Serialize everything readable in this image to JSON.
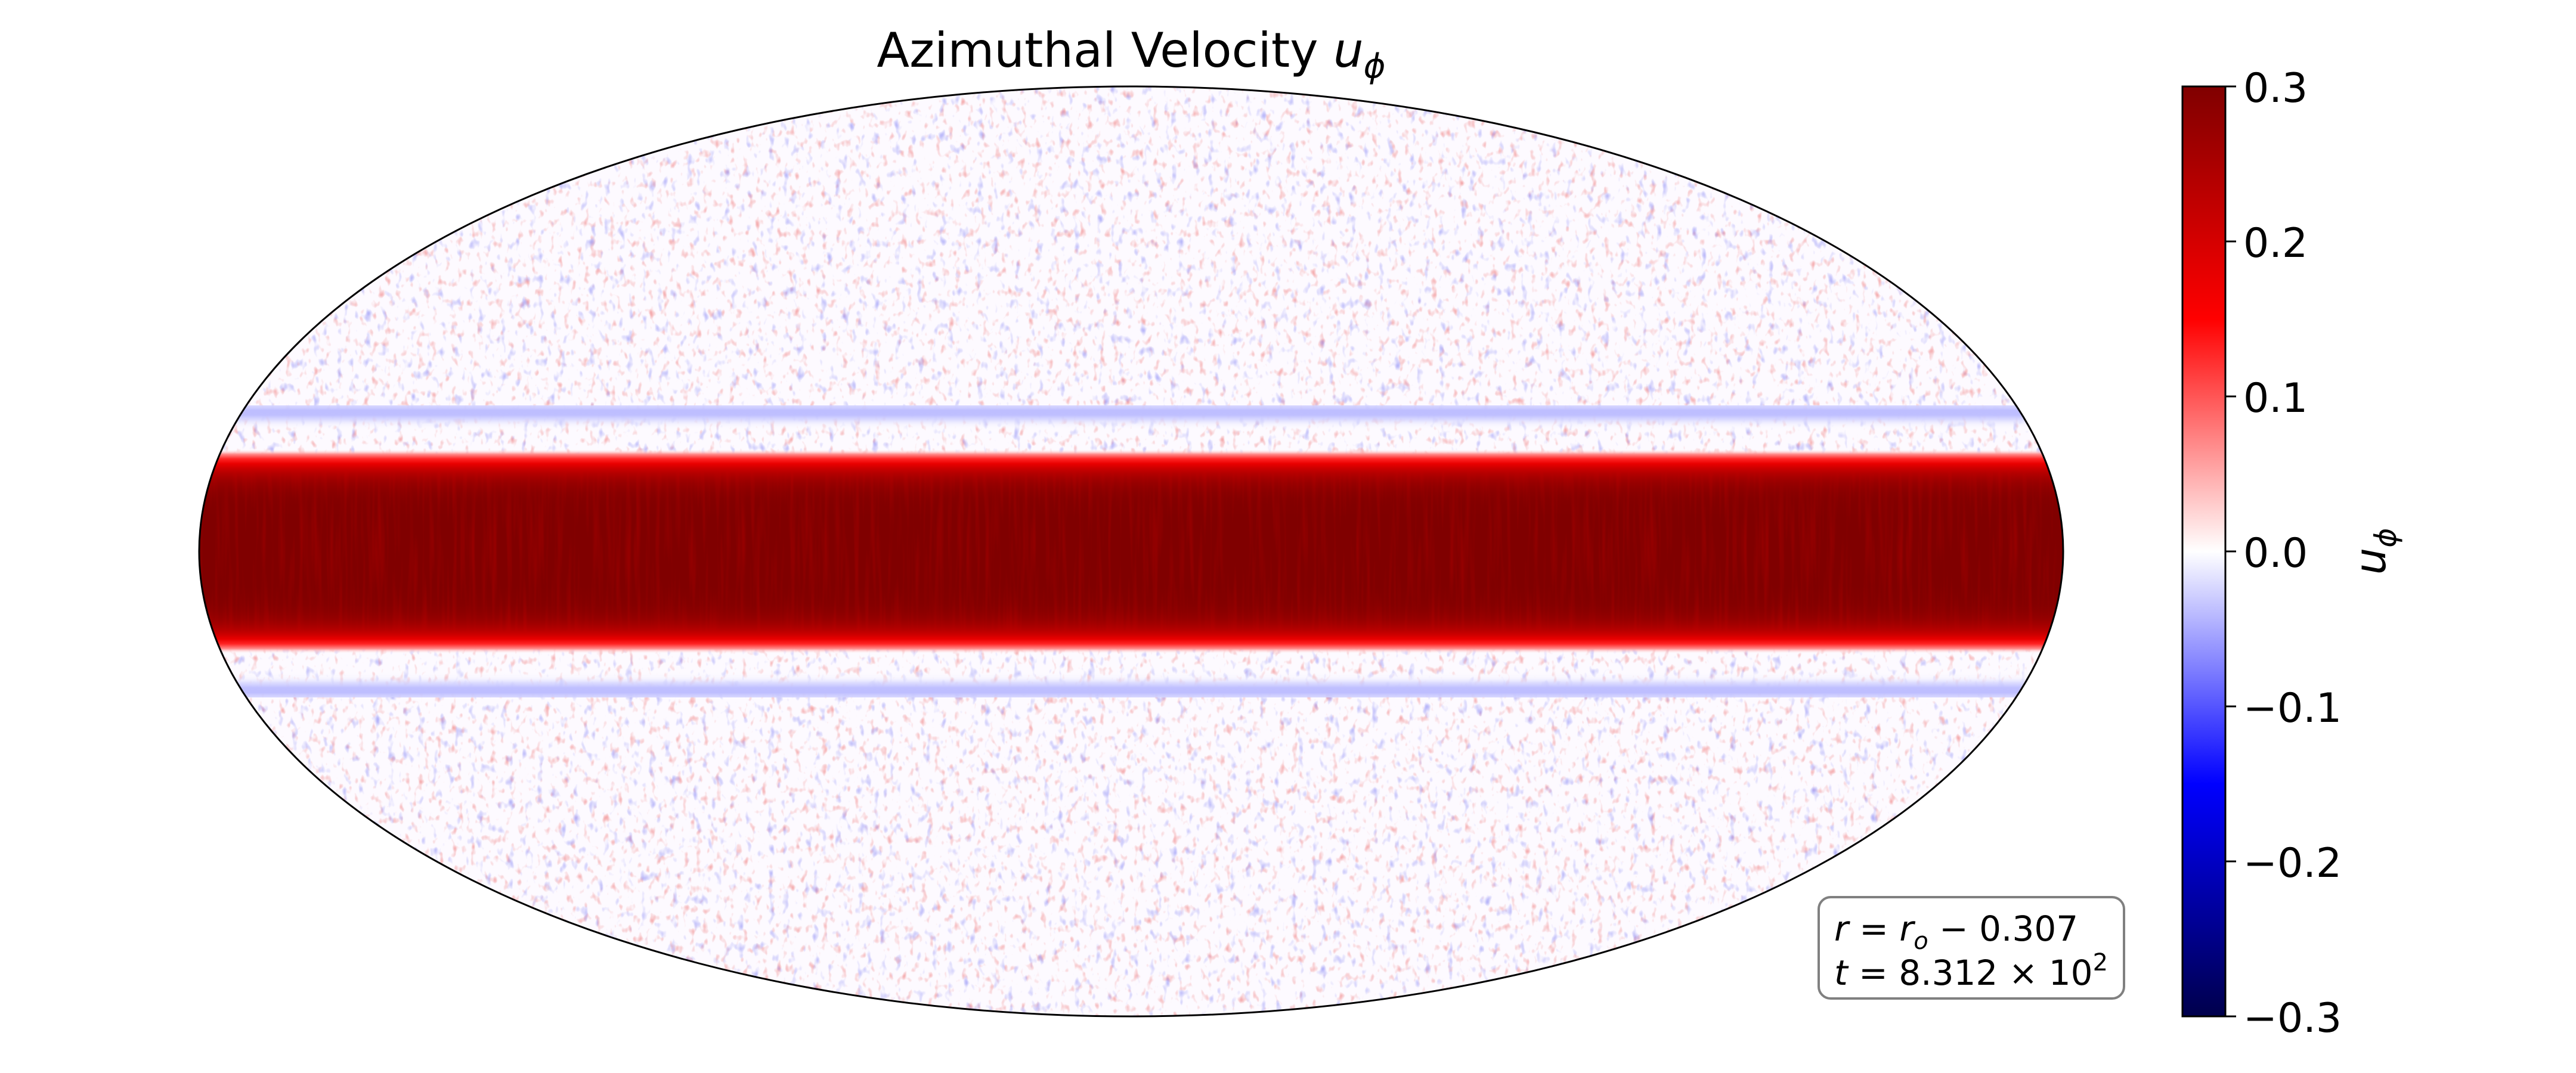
{
  "chart_data": {
    "type": "heatmap",
    "projection": "mollweide",
    "title": {
      "text": "Azimuthal Velocity ",
      "symbol": "u",
      "subscript": "ϕ"
    },
    "field": {
      "equatorial_band_peak": 0.3,
      "band_half_width_deg": 16,
      "flank_negative_ring_value": -0.04,
      "background_noise_amplitude": 0.03
    },
    "colorbar": {
      "colormap": "seismic",
      "vmin": -0.3,
      "vmax": 0.3,
      "ticks": [
        0.3,
        0.2,
        0.1,
        0.0,
        -0.1,
        -0.2,
        -0.3
      ],
      "tick_labels": [
        "0.3",
        "0.2",
        "0.1",
        "0.0",
        "−0.1",
        "−0.2",
        "−0.3"
      ],
      "label_symbol": "u",
      "label_subscript": "ϕ"
    },
    "annotation": {
      "line1": {
        "a": "r",
        "eq": " = ",
        "b": "r",
        "b_sub": "o",
        "rest": " −  0.307"
      },
      "line2": {
        "a": "t",
        "eq": " = ",
        "mantissa": "8.312",
        "times": " × ",
        "base": "10",
        "exponent": "2"
      },
      "placement": "bottom-right"
    },
    "legend": false,
    "grid": false
  }
}
